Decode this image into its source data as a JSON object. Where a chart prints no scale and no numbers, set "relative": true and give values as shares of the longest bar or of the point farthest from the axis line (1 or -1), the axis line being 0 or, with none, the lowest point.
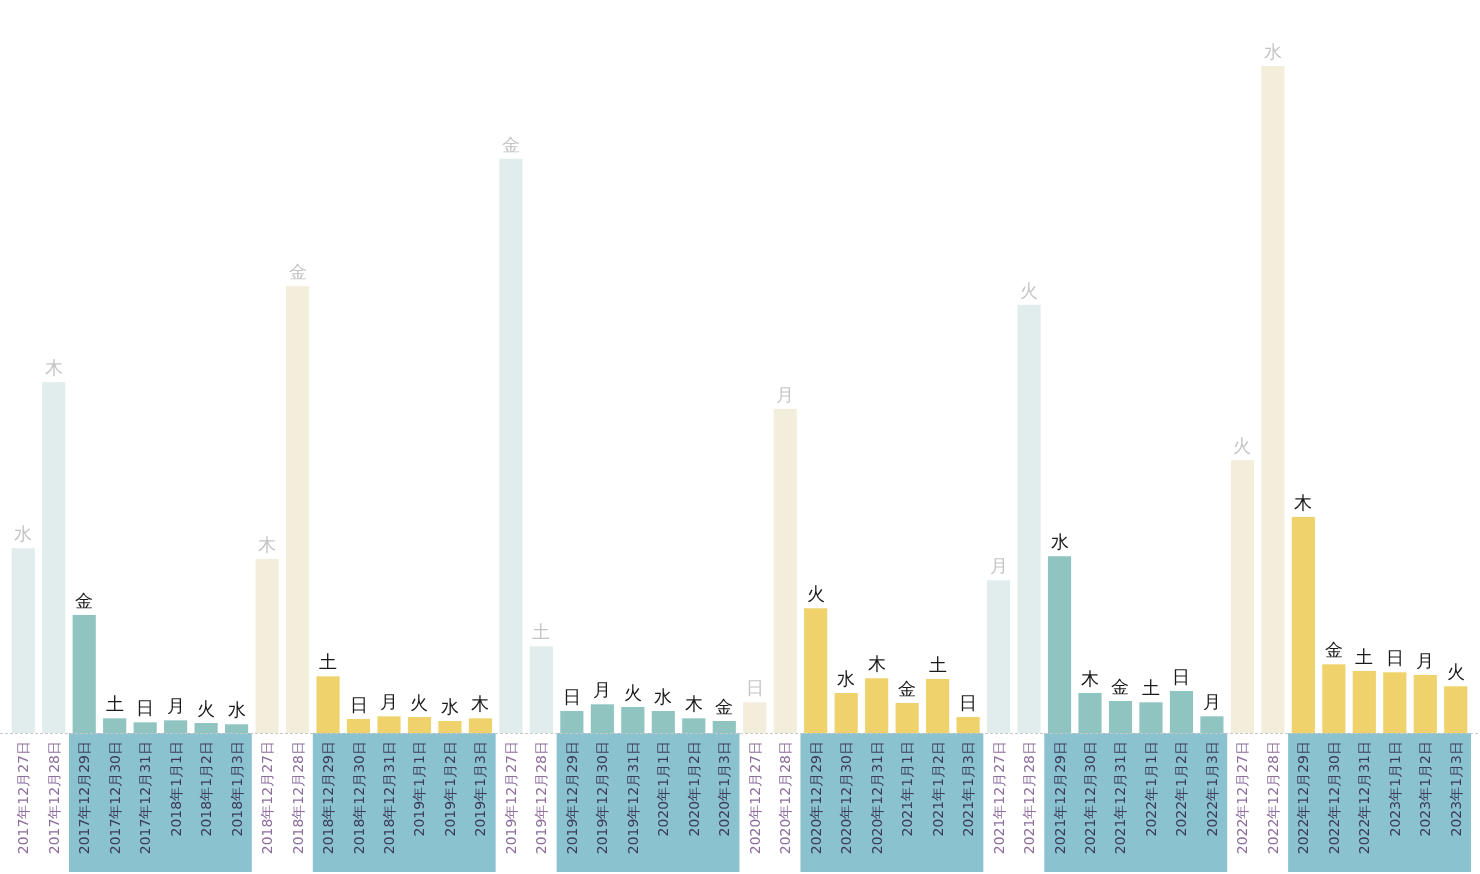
{
  "chart_data": {
    "type": "bar",
    "relative": true,
    "categories": [
      "2017年12月27日",
      "2017年12月28日",
      "2017年12月29日",
      "2017年12月30日",
      "2017年12月31日",
      "2018年1月1日",
      "2018年1月2日",
      "2018年1月3日",
      "2018年12月27日",
      "2018年12月28日",
      "2018年12月29日",
      "2018年12月30日",
      "2018年12月31日",
      "2019年1月1日",
      "2019年1月2日",
      "2019年1月3日",
      "2019年12月27日",
      "2019年12月28日",
      "2019年12月29日",
      "2019年12月30日",
      "2019年12月31日",
      "2020年1月1日",
      "2020年1月2日",
      "2020年1月3日",
      "2020年12月27日",
      "2020年12月28日",
      "2020年12月29日",
      "2020年12月30日",
      "2020年12月31日",
      "2021年1月1日",
      "2021年1月2日",
      "2021年1月3日",
      "2021年12月27日",
      "2021年12月28日",
      "2021年12月29日",
      "2021年12月30日",
      "2021年12月31日",
      "2022年1月1日",
      "2022年1月2日",
      "2022年1月3日",
      "2022年12月27日",
      "2022年12月28日",
      "2022年12月29日",
      "2022年12月30日",
      "2022年12月31日",
      "2023年1月1日",
      "2023年1月2日",
      "2023年1月3日"
    ],
    "values": [
      0.277,
      0.526,
      0.177,
      0.022,
      0.016,
      0.019,
      0.015,
      0.013,
      0.261,
      0.67,
      0.085,
      0.021,
      0.025,
      0.024,
      0.018,
      0.022,
      0.861,
      0.13,
      0.033,
      0.043,
      0.039,
      0.033,
      0.022,
      0.018,
      0.046,
      0.486,
      0.187,
      0.06,
      0.082,
      0.045,
      0.081,
      0.024,
      0.229,
      0.642,
      0.265,
      0.06,
      0.048,
      0.046,
      0.063,
      0.025,
      0.409,
      1,
      0.324,
      0.103,
      0.093,
      0.091,
      0.087,
      0.07
    ],
    "colors": [
      "#e1ecec",
      "#e1ecec",
      "#8fc4c0",
      "#8fc4c0",
      "#8fc4c0",
      "#8fc4c0",
      "#8fc4c0",
      "#8fc4c0",
      "#f3eddc",
      "#f3eddc",
      "#efd26b",
      "#efd26b",
      "#efd26b",
      "#efd26b",
      "#efd26b",
      "#efd26b",
      "#e1ecec",
      "#e1ecec",
      "#8fc4c0",
      "#8fc4c0",
      "#8fc4c0",
      "#8fc4c0",
      "#8fc4c0",
      "#8fc4c0",
      "#f3eddc",
      "#f3eddc",
      "#efd26b",
      "#efd26b",
      "#efd26b",
      "#efd26b",
      "#efd26b",
      "#efd26b",
      "#e1ecec",
      "#e1ecec",
      "#8fc4c0",
      "#8fc4c0",
      "#8fc4c0",
      "#8fc4c0",
      "#8fc4c0",
      "#8fc4c0",
      "#f3eddc",
      "#f3eddc",
      "#efd26b",
      "#efd26b",
      "#efd26b",
      "#efd26b",
      "#efd26b",
      "#efd26b"
    ],
    "annotations": [
      {
        "text": "水",
        "x": "2017年12月27日",
        "y": 0.277
      },
      {
        "text": "木",
        "x": "2017年12月28日",
        "y": 0.526
      },
      {
        "text": "金",
        "x": "2017年12月29日",
        "y": 0.177
      },
      {
        "text": "土",
        "x": "2017年12月30日",
        "y": 0.022
      },
      {
        "text": "日",
        "x": "2017年12月31日",
        "y": 0.016
      },
      {
        "text": "月",
        "x": "2018年1月1日",
        "y": 0.019
      },
      {
        "text": "火",
        "x": "2018年1月2日",
        "y": 0.015
      },
      {
        "text": "水",
        "x": "2018年1月3日",
        "y": 0.013
      },
      {
        "text": "木",
        "x": "2018年12月27日",
        "y": 0.261
      },
      {
        "text": "金",
        "x": "2018年12月28日",
        "y": 0.67
      },
      {
        "text": "土",
        "x": "2018年12月29日",
        "y": 0.085
      },
      {
        "text": "日",
        "x": "2018年12月30日",
        "y": 0.021
      },
      {
        "text": "月",
        "x": "2018年12月31日",
        "y": 0.025
      },
      {
        "text": "火",
        "x": "2019年1月1日",
        "y": 0.024
      },
      {
        "text": "水",
        "x": "2019年1月2日",
        "y": 0.018
      },
      {
        "text": "木",
        "x": "2019年1月3日",
        "y": 0.022
      },
      {
        "text": "金",
        "x": "2019年12月27日",
        "y": 0.861
      },
      {
        "text": "土",
        "x": "2019年12月28日",
        "y": 0.13
      },
      {
        "text": "日",
        "x": "2019年12月29日",
        "y": 0.033
      },
      {
        "text": "月",
        "x": "2019年12月30日",
        "y": 0.043
      },
      {
        "text": "火",
        "x": "2019年12月31日",
        "y": 0.039
      },
      {
        "text": "水",
        "x": "2020年1月1日",
        "y": 0.033
      },
      {
        "text": "木",
        "x": "2020年1月2日",
        "y": 0.022
      },
      {
        "text": "金",
        "x": "2020年1月3日",
        "y": 0.018
      },
      {
        "text": "日",
        "x": "2020年12月27日",
        "y": 0.046
      },
      {
        "text": "月",
        "x": "2020年12月28日",
        "y": 0.486
      },
      {
        "text": "火",
        "x": "2020年12月29日",
        "y": 0.187
      },
      {
        "text": "水",
        "x": "2020年12月30日",
        "y": 0.06
      },
      {
        "text": "木",
        "x": "2020年12月31日",
        "y": 0.082
      },
      {
        "text": "金",
        "x": "2021年1月1日",
        "y": 0.045
      },
      {
        "text": "土",
        "x": "2021年1月2日",
        "y": 0.081
      },
      {
        "text": "日",
        "x": "2021年1月3日",
        "y": 0.024
      },
      {
        "text": "月",
        "x": "2021年12月27日",
        "y": 0.229
      },
      {
        "text": "火",
        "x": "2021年12月28日",
        "y": 0.642
      },
      {
        "text": "水",
        "x": "2021年12月29日",
        "y": 0.265
      },
      {
        "text": "木",
        "x": "2021年12月30日",
        "y": 0.06
      },
      {
        "text": "金",
        "x": "2021年12月31日",
        "y": 0.048
      },
      {
        "text": "土",
        "x": "2022年1月1日",
        "y": 0.046
      },
      {
        "text": "日",
        "x": "2022年1月2日",
        "y": 0.063
      },
      {
        "text": "月",
        "x": "2022年1月3日",
        "y": 0.025
      },
      {
        "text": "火",
        "x": "2022年12月27日",
        "y": 0.409
      },
      {
        "text": "水",
        "x": "2022年12月28日",
        "y": 1
      },
      {
        "text": "木",
        "x": "2022年12月29日",
        "y": 0.324
      },
      {
        "text": "金",
        "x": "2022年12月30日",
        "y": 0.103
      },
      {
        "text": "土",
        "x": "2022年12月31日",
        "y": 0.093
      },
      {
        "text": "日",
        "x": "2023年1月1日",
        "y": 0.091
      },
      {
        "text": "月",
        "x": "2023年1月2日",
        "y": 0.087
      },
      {
        "text": "火",
        "x": "2023年1月3日",
        "y": 0.07
      }
    ]
  }
}
